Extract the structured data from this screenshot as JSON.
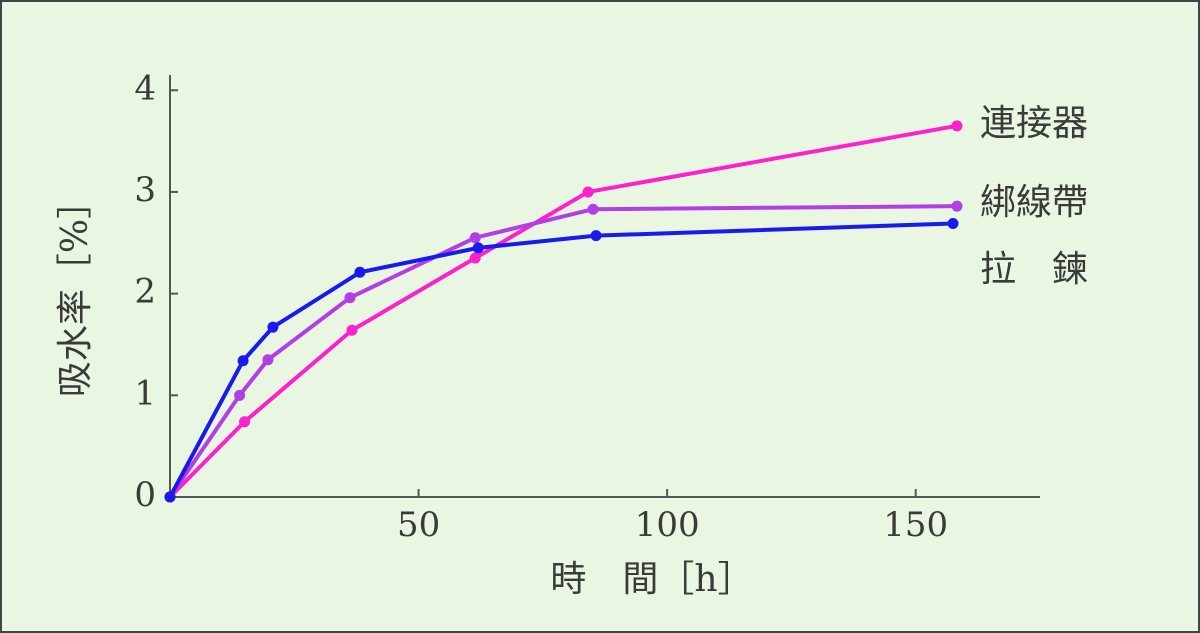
{
  "chart_data": {
    "type": "line",
    "xlabel": "時　間［h］",
    "ylabel": "吸水率［%］",
    "xlim": [
      0,
      175
    ],
    "ylim": [
      0,
      4.15
    ],
    "xticks": [
      50,
      100,
      150
    ],
    "yticks": [
      0,
      1,
      2,
      3,
      4
    ],
    "series": [
      {
        "name": "連接器",
        "color": "#ff1fcc",
        "x": [
          0,
          15,
          36.6,
          61.4,
          84.1,
          158.3
        ],
        "values": [
          0,
          0.74,
          1.64,
          2.35,
          3.0,
          3.65
        ]
      },
      {
        "name": "綁線帶",
        "color": "#b23ee6",
        "x": [
          0,
          14,
          19.7,
          36.2,
          61.4,
          85.1,
          158.3
        ],
        "values": [
          0,
          1.0,
          1.35,
          1.96,
          2.55,
          2.83,
          2.86
        ]
      },
      {
        "name": "拉　鍊",
        "color": "#1a1aee",
        "x": [
          0,
          14.7,
          20.7,
          38.2,
          62,
          85.7,
          157.5
        ],
        "values": [
          0,
          1.34,
          1.67,
          2.21,
          2.45,
          2.57,
          2.69
        ]
      }
    ]
  }
}
